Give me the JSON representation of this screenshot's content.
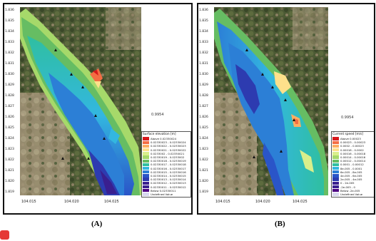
{
  "colors": {
    "band_above": "#d7191c",
    "band_1": "#f46d43",
    "band_2": "#fdae61",
    "band_3": "#fee08b",
    "band_4": "#d9ef8b",
    "band_5": "#a6d96a",
    "band_6": "#66bd63",
    "band_7": "#2fbfa0",
    "band_8": "#33b7e0",
    "band_9": "#2c7fd6",
    "band_10": "#2a55c8",
    "band_11": "#2d3bb0",
    "band_12": "#3a1f8f",
    "band_below": "#4b0082",
    "undefined": "#d8d8f0",
    "land_dark": "#3c4a2a",
    "land_light": "#a89a80"
  },
  "panel_a": {
    "y_ticks": [
      "1.836",
      "1.835",
      "1.834",
      "1.833",
      "1.832",
      "1.831",
      "1.830",
      "1.829",
      "1.828",
      "1.827",
      "1.826",
      "1.825",
      "1.824",
      "1.823",
      "1.822",
      "1.821",
      "1.820",
      "1.819"
    ],
    "x_ticks": [
      "104.015",
      "104.020",
      "104.025"
    ],
    "scale_label": "0.9954",
    "legend_title": "Surface elevation [m]",
    "legend_rows": [
      {
        "label": "Above 0.02330024",
        "color_key": "band_above"
      },
      {
        "label": "0.02330023 - 0.02330024",
        "color_key": "band_1"
      },
      {
        "label": "0.02330022 - 0.02330023",
        "color_key": "band_2"
      },
      {
        "label": "0.02330021 - 0.02330022",
        "color_key": "band_3"
      },
      {
        "label": "0.0233002 - 0.02330021",
        "color_key": "band_4"
      },
      {
        "label": "0.02330019 - 0.0233002",
        "color_key": "band_5"
      },
      {
        "label": "0.02330018 - 0.02330019",
        "color_key": "band_6"
      },
      {
        "label": "0.02330017 - 0.02330018",
        "color_key": "band_7"
      },
      {
        "label": "0.02330016 - 0.02330017",
        "color_key": "band_8"
      },
      {
        "label": "0.02330015 - 0.02330016",
        "color_key": "band_9"
      },
      {
        "label": "0.02330014 - 0.02330015",
        "color_key": "band_10"
      },
      {
        "label": "0.02330013 - 0.02330014",
        "color_key": "band_11"
      },
      {
        "label": "0.02330012 - 0.02330013",
        "color_key": "band_12"
      },
      {
        "label": "0.02330011 - 0.02330012",
        "color_key": "band_12"
      },
      {
        "label": "Below 0.02330011",
        "color_key": "band_below"
      },
      {
        "label": "Undefined Value",
        "color_key": "undefined"
      }
    ]
  },
  "panel_b": {
    "y_ticks": [
      "1.836",
      "1.835",
      "1.834",
      "1.833",
      "1.832",
      "1.831",
      "1.830",
      "1.829",
      "1.828",
      "1.827",
      "1.826",
      "1.825",
      "1.824",
      "1.823",
      "1.822",
      "1.821",
      "1.820",
      "1.819"
    ],
    "x_ticks": [
      "104.015",
      "104.020",
      "104.025"
    ],
    "scale_label": "0.9954",
    "legend_title": "Current speed [m/s]",
    "legend_rows": [
      {
        "label": "Above 0.00023",
        "color_key": "band_above"
      },
      {
        "label": "0.00023 - 0.00023",
        "color_key": "band_1"
      },
      {
        "label": "0.0002 - 0.00023",
        "color_key": "band_2"
      },
      {
        "label": "0.00018 - 0.0002",
        "color_key": "band_3"
      },
      {
        "label": "0.00016 - 0.00018",
        "color_key": "band_4"
      },
      {
        "label": "0.00014 - 0.00016",
        "color_key": "band_5"
      },
      {
        "label": "0.00012 - 0.00014",
        "color_key": "band_6"
      },
      {
        "label": "0.0001 - 0.00012",
        "color_key": "band_7"
      },
      {
        "label": "8e-005 - 0.0001",
        "color_key": "band_8"
      },
      {
        "label": "6e-005 - 8e-005",
        "color_key": "band_9"
      },
      {
        "label": "4e-005 - 6e-005",
        "color_key": "band_10"
      },
      {
        "label": "2e-005 - 4e-005",
        "color_key": "band_11"
      },
      {
        "label": "0 - 2e-005",
        "color_key": "band_12"
      },
      {
        "label": "-2e-005 - 0",
        "color_key": "band_12"
      },
      {
        "label": "Below -2e-005",
        "color_key": "band_below"
      },
      {
        "label": "Undefined Value",
        "color_key": "undefined"
      }
    ]
  },
  "captions": {
    "a": "(A)",
    "b": "(B)"
  }
}
